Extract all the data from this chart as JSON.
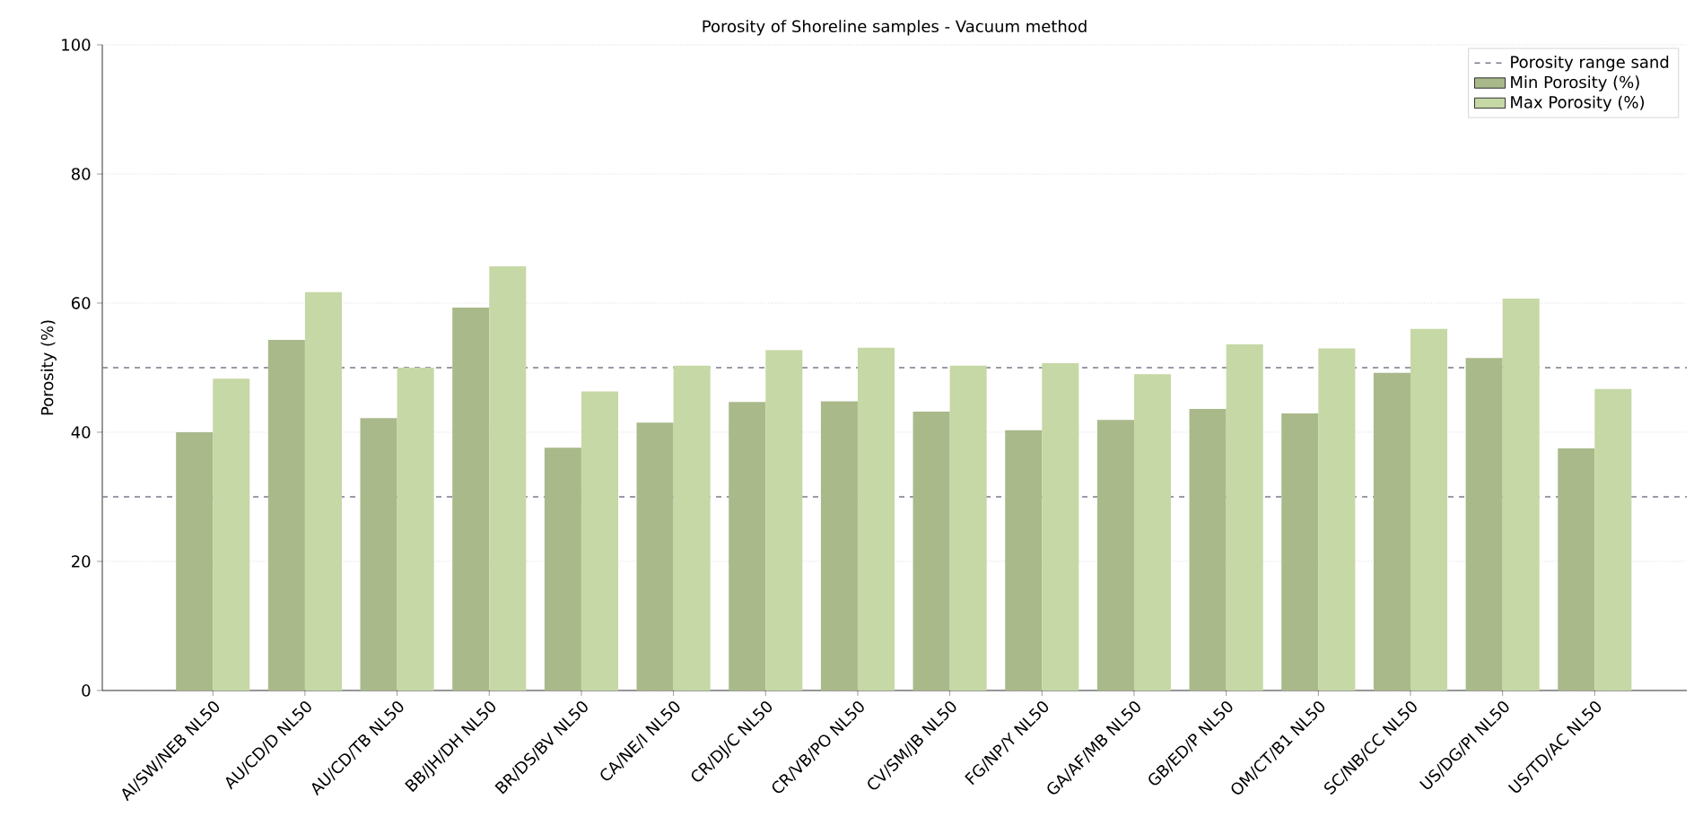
{
  "chart_data": {
    "type": "bar",
    "title": "Porosity of Shoreline samples - Vacuum method",
    "ylabel": "Porosity (%)",
    "categories": [
      "AI/SW/NEB NL50",
      "AU/CD/D NL50",
      "AU/CD/TB NL50",
      "BB/JH/DH NL50",
      "BR/DS/BV NL50",
      "CA/NE/I NL50",
      "CR/DJ/C NL50",
      "CR/VB/PO NL50",
      "CV/SM/JB NL50",
      "FG/NP/Y NL50",
      "GA/AF/MB NL50",
      "GB/ED/P NL50",
      "OM/CT/B1 NL50",
      "SC/NB/CC NL50",
      "US/DG/PI NL50",
      "US/TD/AC NL50"
    ],
    "series": [
      {
        "name": "Min Porosity (%)",
        "color": "#a9b98a",
        "values": [
          40,
          54.3,
          42.2,
          59.3,
          37.6,
          41.5,
          44.7,
          44.8,
          43.2,
          40.3,
          41.9,
          43.6,
          42.9,
          49.2,
          51.5,
          37.5
        ]
      },
      {
        "name": "Max Porosity (%)",
        "color": "#c6d8a5",
        "values": [
          48.3,
          61.7,
          50,
          65.7,
          46.3,
          50.3,
          52.7,
          53.1,
          50.3,
          50.7,
          49,
          53.6,
          53,
          56,
          60.7,
          46.7
        ]
      }
    ],
    "ylim": [
      0,
      100
    ],
    "yticks": [
      0,
      20,
      40,
      60,
      80,
      100
    ],
    "grid": "y",
    "legend": "top right",
    "ref_lines": [
      {
        "axis": "y",
        "value": 30,
        "label": "Porosity range sand",
        "color": "#7a7a8a",
        "line_style": "dashed"
      },
      {
        "axis": "y",
        "value": 50,
        "color": "#7a7a8a",
        "line_style": "dashed"
      }
    ]
  }
}
